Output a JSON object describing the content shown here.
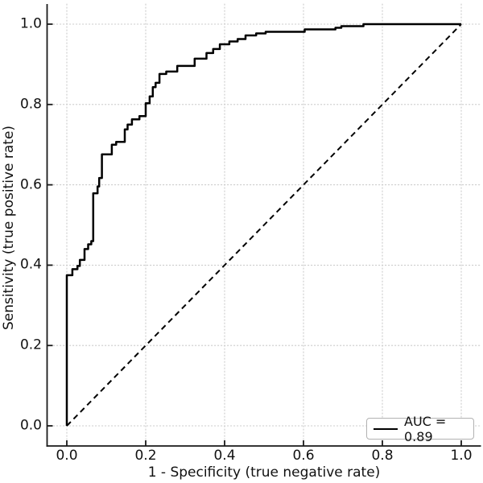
{
  "figure": {
    "background": "#ffffff"
  },
  "colors": {
    "curve": "#000000",
    "diagonal": "#000000",
    "grid": "#cbcbcb",
    "spine": "#1a1a1a",
    "tick": "#1a1a1a",
    "text": "#111111",
    "legend_border": "#b2b2b2",
    "legend_bg": "#ffffff"
  },
  "chart_data": {
    "type": "line",
    "title": "",
    "xlabel": "1 - Specificity (true negative rate)",
    "ylabel": "Sensitivity (true positive rate)",
    "xlim": [
      -0.05,
      1.05
    ],
    "ylim": [
      -0.05,
      1.05
    ],
    "grid": true,
    "xticks": [
      0.0,
      0.2,
      0.4,
      0.6,
      0.8,
      1.0
    ],
    "yticks": [
      0.0,
      0.2,
      0.4,
      0.6,
      0.8,
      1.0
    ],
    "xtick_labels": [
      "0.0",
      "0.2",
      "0.4",
      "0.6",
      "0.8",
      "1.0"
    ],
    "ytick_labels": [
      "0.0",
      "0.2",
      "0.4",
      "0.6",
      "0.8",
      "1.0"
    ],
    "legend": {
      "position": "lower right",
      "entries": [
        {
          "label": "AUC = 0.89",
          "line_style": "solid",
          "color": "#000000"
        }
      ]
    },
    "auc": 0.89,
    "series": [
      {
        "name": "ROC curve",
        "style": "solid",
        "color": "#000000",
        "line_width": 2.5,
        "points": [
          [
            0.0,
            0.0
          ],
          [
            0.0,
            0.375
          ],
          [
            0.014,
            0.375
          ],
          [
            0.014,
            0.39
          ],
          [
            0.027,
            0.39
          ],
          [
            0.027,
            0.398
          ],
          [
            0.033,
            0.398
          ],
          [
            0.033,
            0.413
          ],
          [
            0.045,
            0.413
          ],
          [
            0.045,
            0.44
          ],
          [
            0.054,
            0.44
          ],
          [
            0.054,
            0.452
          ],
          [
            0.062,
            0.452
          ],
          [
            0.062,
            0.46
          ],
          [
            0.067,
            0.46
          ],
          [
            0.067,
            0.579
          ],
          [
            0.078,
            0.579
          ],
          [
            0.078,
            0.596
          ],
          [
            0.082,
            0.596
          ],
          [
            0.082,
            0.617
          ],
          [
            0.089,
            0.617
          ],
          [
            0.089,
            0.676
          ],
          [
            0.114,
            0.676
          ],
          [
            0.114,
            0.7
          ],
          [
            0.125,
            0.7
          ],
          [
            0.125,
            0.707
          ],
          [
            0.147,
            0.707
          ],
          [
            0.147,
            0.738
          ],
          [
            0.154,
            0.738
          ],
          [
            0.154,
            0.75
          ],
          [
            0.165,
            0.75
          ],
          [
            0.165,
            0.763
          ],
          [
            0.184,
            0.763
          ],
          [
            0.184,
            0.771
          ],
          [
            0.2,
            0.771
          ],
          [
            0.2,
            0.803
          ],
          [
            0.21,
            0.803
          ],
          [
            0.21,
            0.82
          ],
          [
            0.218,
            0.82
          ],
          [
            0.218,
            0.843
          ],
          [
            0.225,
            0.843
          ],
          [
            0.225,
            0.854
          ],
          [
            0.235,
            0.854
          ],
          [
            0.235,
            0.876
          ],
          [
            0.252,
            0.876
          ],
          [
            0.252,
            0.882
          ],
          [
            0.28,
            0.882
          ],
          [
            0.28,
            0.896
          ],
          [
            0.324,
            0.896
          ],
          [
            0.324,
            0.914
          ],
          [
            0.354,
            0.914
          ],
          [
            0.354,
            0.928
          ],
          [
            0.371,
            0.928
          ],
          [
            0.371,
            0.938
          ],
          [
            0.388,
            0.938
          ],
          [
            0.388,
            0.95
          ],
          [
            0.412,
            0.95
          ],
          [
            0.412,
            0.957
          ],
          [
            0.433,
            0.957
          ],
          [
            0.433,
            0.963
          ],
          [
            0.453,
            0.963
          ],
          [
            0.453,
            0.972
          ],
          [
            0.48,
            0.972
          ],
          [
            0.48,
            0.977
          ],
          [
            0.504,
            0.977
          ],
          [
            0.504,
            0.981
          ],
          [
            0.603,
            0.981
          ],
          [
            0.603,
            0.987
          ],
          [
            0.681,
            0.987
          ],
          [
            0.681,
            0.991
          ],
          [
            0.696,
            0.991
          ],
          [
            0.696,
            0.995
          ],
          [
            0.752,
            0.995
          ],
          [
            0.752,
            1.0
          ],
          [
            1.0,
            1.0
          ]
        ]
      },
      {
        "name": "chance diagonal",
        "style": "dashed",
        "color": "#000000",
        "line_width": 2.0,
        "points": [
          [
            0.0,
            0.0
          ],
          [
            1.0,
            1.0
          ]
        ]
      }
    ]
  }
}
